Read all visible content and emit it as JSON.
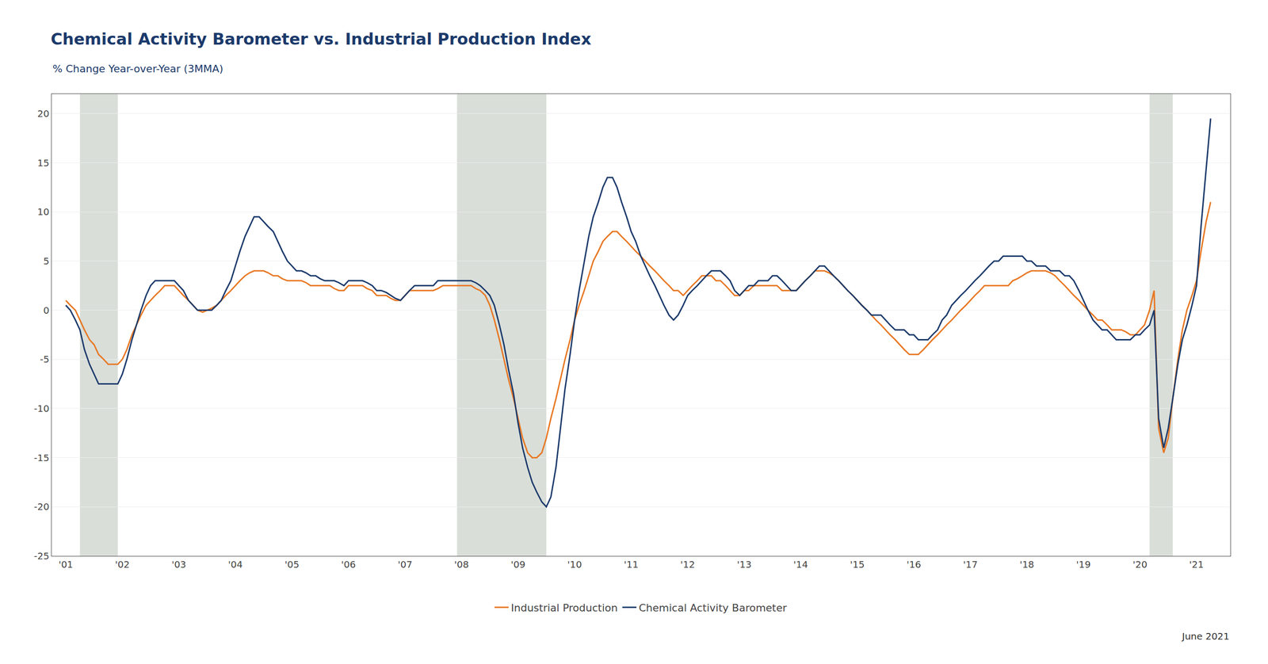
{
  "chart_data": {
    "type": "line",
    "title": "Chemical Activity Barometer vs. Industrial Production Index",
    "subtitle": "% Change Year-over-Year (3MMA)",
    "annotations": [
      "June 2021"
    ],
    "x": [
      2001.0,
      2001.08,
      2001.17,
      2001.25,
      2001.33,
      2001.42,
      2001.5,
      2001.58,
      2001.67,
      2001.75,
      2001.83,
      2001.92,
      2002.0,
      2002.08,
      2002.17,
      2002.25,
      2002.33,
      2002.42,
      2002.5,
      2002.58,
      2002.67,
      2002.75,
      2002.83,
      2002.92,
      2003.0,
      2003.08,
      2003.17,
      2003.25,
      2003.33,
      2003.42,
      2003.5,
      2003.58,
      2003.67,
      2003.75,
      2003.83,
      2003.92,
      2004.0,
      2004.08,
      2004.17,
      2004.25,
      2004.33,
      2004.42,
      2004.5,
      2004.58,
      2004.67,
      2004.75,
      2004.83,
      2004.92,
      2005.0,
      2005.08,
      2005.17,
      2005.25,
      2005.33,
      2005.42,
      2005.5,
      2005.58,
      2005.67,
      2005.75,
      2005.83,
      2005.92,
      2006.0,
      2006.08,
      2006.17,
      2006.25,
      2006.33,
      2006.42,
      2006.5,
      2006.58,
      2006.67,
      2006.75,
      2006.83,
      2006.92,
      2007.0,
      2007.08,
      2007.17,
      2007.25,
      2007.33,
      2007.42,
      2007.5,
      2007.58,
      2007.67,
      2007.75,
      2007.83,
      2007.92,
      2008.0,
      2008.08,
      2008.17,
      2008.25,
      2008.33,
      2008.42,
      2008.5,
      2008.58,
      2008.67,
      2008.75,
      2008.83,
      2008.92,
      2009.0,
      2009.08,
      2009.17,
      2009.25,
      2009.33,
      2009.42,
      2009.5,
      2009.58,
      2009.67,
      2009.75,
      2009.83,
      2009.92,
      2010.0,
      2010.08,
      2010.17,
      2010.25,
      2010.33,
      2010.42,
      2010.5,
      2010.58,
      2010.67,
      2010.75,
      2010.83,
      2010.92,
      2011.0,
      2011.08,
      2011.17,
      2011.25,
      2011.33,
      2011.42,
      2011.5,
      2011.58,
      2011.67,
      2011.75,
      2011.83,
      2011.92,
      2012.0,
      2012.08,
      2012.17,
      2012.25,
      2012.33,
      2012.42,
      2012.5,
      2012.58,
      2012.67,
      2012.75,
      2012.83,
      2012.92,
      2013.0,
      2013.08,
      2013.17,
      2013.25,
      2013.33,
      2013.42,
      2013.5,
      2013.58,
      2013.67,
      2013.75,
      2013.83,
      2013.92,
      2014.0,
      2014.08,
      2014.17,
      2014.25,
      2014.33,
      2014.42,
      2014.5,
      2014.58,
      2014.67,
      2014.75,
      2014.83,
      2014.92,
      2015.0,
      2015.08,
      2015.17,
      2015.25,
      2015.33,
      2015.42,
      2015.5,
      2015.58,
      2015.67,
      2015.75,
      2015.83,
      2015.92,
      2016.0,
      2016.08,
      2016.17,
      2016.25,
      2016.33,
      2016.42,
      2016.5,
      2016.58,
      2016.67,
      2016.75,
      2016.83,
      2016.92,
      2017.0,
      2017.08,
      2017.17,
      2017.25,
      2017.33,
      2017.42,
      2017.5,
      2017.58,
      2017.67,
      2017.75,
      2017.83,
      2017.92,
      2018.0,
      2018.08,
      2018.17,
      2018.25,
      2018.33,
      2018.42,
      2018.5,
      2018.58,
      2018.67,
      2018.75,
      2018.83,
      2018.92,
      2019.0,
      2019.08,
      2019.17,
      2019.25,
      2019.33,
      2019.42,
      2019.5,
      2019.58,
      2019.67,
      2019.75,
      2019.83,
      2019.92,
      2020.0,
      2020.08,
      2020.17,
      2020.25,
      2020.33,
      2020.42,
      2020.5,
      2020.58,
      2020.67,
      2020.75,
      2020.83,
      2020.92,
      2021.0,
      2021.08,
      2021.17,
      2021.25
    ],
    "series": [
      {
        "name": "Industrial Production",
        "color": "#E87722",
        "values": [
          1.0,
          0.5,
          0.0,
          -1.0,
          -2.0,
          -3.0,
          -3.5,
          -4.5,
          -5.0,
          -5.5,
          -5.5,
          -5.5,
          -5.0,
          -4.0,
          -2.5,
          -1.5,
          -0.5,
          0.5,
          1.0,
          1.5,
          2.0,
          2.5,
          2.5,
          2.5,
          2.0,
          1.5,
          1.0,
          0.5,
          0.0,
          -0.2,
          0.0,
          0.2,
          0.5,
          1.0,
          1.5,
          2.0,
          2.5,
          3.0,
          3.5,
          3.8,
          4.0,
          4.0,
          4.0,
          3.8,
          3.5,
          3.5,
          3.2,
          3.0,
          3.0,
          3.0,
          3.0,
          2.8,
          2.5,
          2.5,
          2.5,
          2.5,
          2.5,
          2.2,
          2.0,
          2.0,
          2.5,
          2.5,
          2.5,
          2.5,
          2.2,
          2.0,
          1.5,
          1.5,
          1.5,
          1.2,
          1.0,
          1.0,
          1.5,
          2.0,
          2.0,
          2.0,
          2.0,
          2.0,
          2.0,
          2.2,
          2.5,
          2.5,
          2.5,
          2.5,
          2.5,
          2.5,
          2.5,
          2.2,
          2.0,
          1.5,
          0.5,
          -1.0,
          -3.0,
          -5.0,
          -7.0,
          -9.0,
          -11.0,
          -13.0,
          -14.5,
          -15.0,
          -15.0,
          -14.5,
          -13.0,
          -11.0,
          -9.0,
          -7.0,
          -5.0,
          -3.0,
          -1.0,
          0.5,
          2.0,
          3.5,
          5.0,
          6.0,
          7.0,
          7.5,
          8.0,
          8.0,
          7.5,
          7.0,
          6.5,
          6.0,
          5.5,
          5.0,
          4.5,
          4.0,
          3.5,
          3.0,
          2.5,
          2.0,
          2.0,
          1.5,
          2.0,
          2.5,
          3.0,
          3.5,
          3.5,
          3.5,
          3.0,
          3.0,
          2.5,
          2.0,
          1.5,
          1.5,
          2.0,
          2.0,
          2.5,
          2.5,
          2.5,
          2.5,
          2.5,
          2.5,
          2.0,
          2.0,
          2.0,
          2.0,
          2.5,
          3.0,
          3.5,
          4.0,
          4.0,
          4.0,
          3.8,
          3.5,
          3.0,
          2.5,
          2.0,
          1.5,
          1.0,
          0.5,
          0.0,
          -0.5,
          -1.0,
          -1.5,
          -2.0,
          -2.5,
          -3.0,
          -3.5,
          -4.0,
          -4.5,
          -4.5,
          -4.5,
          -4.0,
          -3.5,
          -3.0,
          -2.5,
          -2.0,
          -1.5,
          -1.0,
          -0.5,
          0.0,
          0.5,
          1.0,
          1.5,
          2.0,
          2.5,
          2.5,
          2.5,
          2.5,
          2.5,
          2.5,
          3.0,
          3.2,
          3.5,
          3.8,
          4.0,
          4.0,
          4.0,
          4.0,
          3.8,
          3.5,
          3.0,
          2.5,
          2.0,
          1.5,
          1.0,
          0.5,
          0.0,
          -0.5,
          -1.0,
          -1.0,
          -1.5,
          -2.0,
          -2.0,
          -2.0,
          -2.2,
          -2.5,
          -2.5,
          -2.0,
          -1.5,
          0.0,
          2.0,
          -12.0,
          -14.5,
          -13.0,
          -9.0,
          -5.0,
          -2.0,
          0.0,
          1.5,
          3.0,
          6.0,
          9.0,
          11.0
        ]
      },
      {
        "name": "Chemical Activity Barometer",
        "color": "#1B3A6B",
        "values": [
          0.5,
          0.0,
          -1.0,
          -2.0,
          -4.0,
          -5.5,
          -6.5,
          -7.5,
          -7.5,
          -7.5,
          -7.5,
          -7.5,
          -6.5,
          -5.0,
          -3.0,
          -1.5,
          0.0,
          1.5,
          2.5,
          3.0,
          3.0,
          3.0,
          3.0,
          3.0,
          2.5,
          2.0,
          1.0,
          0.5,
          0.0,
          0.0,
          0.0,
          0.0,
          0.5,
          1.0,
          2.0,
          3.0,
          4.5,
          6.0,
          7.5,
          8.5,
          9.5,
          9.5,
          9.0,
          8.5,
          8.0,
          7.0,
          6.0,
          5.0,
          4.5,
          4.0,
          4.0,
          3.8,
          3.5,
          3.5,
          3.2,
          3.0,
          3.0,
          3.0,
          2.8,
          2.5,
          3.0,
          3.0,
          3.0,
          3.0,
          2.8,
          2.5,
          2.0,
          2.0,
          1.8,
          1.5,
          1.2,
          1.0,
          1.5,
          2.0,
          2.5,
          2.5,
          2.5,
          2.5,
          2.5,
          3.0,
          3.0,
          3.0,
          3.0,
          3.0,
          3.0,
          3.0,
          3.0,
          2.8,
          2.5,
          2.0,
          1.5,
          0.5,
          -1.5,
          -3.5,
          -6.0,
          -8.5,
          -11.5,
          -14.0,
          -16.0,
          -17.5,
          -18.5,
          -19.5,
          -20.0,
          -19.0,
          -16.0,
          -12.0,
          -8.0,
          -4.5,
          -1.0,
          2.0,
          5.0,
          7.5,
          9.5,
          11.0,
          12.5,
          13.5,
          13.5,
          12.5,
          11.0,
          9.5,
          8.0,
          7.0,
          5.5,
          4.5,
          3.5,
          2.5,
          1.5,
          0.5,
          -0.5,
          -1.0,
          -0.5,
          0.5,
          1.5,
          2.0,
          2.5,
          3.0,
          3.5,
          4.0,
          4.0,
          4.0,
          3.5,
          3.0,
          2.0,
          1.5,
          2.0,
          2.5,
          2.5,
          3.0,
          3.0,
          3.0,
          3.5,
          3.5,
          3.0,
          2.5,
          2.0,
          2.0,
          2.5,
          3.0,
          3.5,
          4.0,
          4.5,
          4.5,
          4.0,
          3.5,
          3.0,
          2.5,
          2.0,
          1.5,
          1.0,
          0.5,
          0.0,
          -0.5,
          -0.5,
          -0.5,
          -1.0,
          -1.5,
          -2.0,
          -2.0,
          -2.0,
          -2.5,
          -2.5,
          -3.0,
          -3.0,
          -3.0,
          -2.5,
          -2.0,
          -1.0,
          -0.5,
          0.5,
          1.0,
          1.5,
          2.0,
          2.5,
          3.0,
          3.5,
          4.0,
          4.5,
          5.0,
          5.0,
          5.5,
          5.5,
          5.5,
          5.5,
          5.5,
          5.0,
          5.0,
          4.5,
          4.5,
          4.5,
          4.0,
          4.0,
          4.0,
          3.5,
          3.5,
          3.0,
          2.0,
          1.0,
          0.0,
          -1.0,
          -1.5,
          -2.0,
          -2.0,
          -2.5,
          -3.0,
          -3.0,
          -3.0,
          -3.0,
          -2.5,
          -2.5,
          -2.0,
          -1.5,
          0.0,
          -11.0,
          -14.0,
          -12.0,
          -9.0,
          -5.5,
          -3.0,
          -1.5,
          0.5,
          2.5,
          8.5,
          14.5,
          19.5
        ]
      }
    ],
    "bands": [
      {
        "x0": 2001.25,
        "x1": 2001.92,
        "color": "#C0C8C0"
      },
      {
        "x0": 2007.92,
        "x1": 2009.5,
        "color": "#C0C8C0"
      },
      {
        "x0": 2020.17,
        "x1": 2020.58,
        "color": "#C0C8C0"
      }
    ],
    "xlim": [
      2000.75,
      2021.6
    ],
    "xticks": [
      {
        "value": 2001,
        "label": "'01"
      },
      {
        "value": 2002,
        "label": "'02"
      },
      {
        "value": 2003,
        "label": "'03"
      },
      {
        "value": 2004,
        "label": "'04"
      },
      {
        "value": 2005,
        "label": "'05"
      },
      {
        "value": 2006,
        "label": "'06"
      },
      {
        "value": 2007,
        "label": "'07"
      },
      {
        "value": 2008,
        "label": "'08"
      },
      {
        "value": 2009,
        "label": "'09"
      },
      {
        "value": 2010,
        "label": "'10"
      },
      {
        "value": 2011,
        "label": "'11"
      },
      {
        "value": 2012,
        "label": "'12"
      },
      {
        "value": 2013,
        "label": "'13"
      },
      {
        "value": 2014,
        "label": "'14"
      },
      {
        "value": 2015,
        "label": "'15"
      },
      {
        "value": 2016,
        "label": "'16"
      },
      {
        "value": 2017,
        "label": "'17"
      },
      {
        "value": 2018,
        "label": "'18"
      },
      {
        "value": 2019,
        "label": "'19"
      },
      {
        "value": 2020,
        "label": "'20"
      },
      {
        "value": 2021,
        "label": "'21"
      }
    ],
    "ylim": [
      -25,
      22
    ],
    "yticks": [
      -25,
      -20,
      -15,
      -10,
      -5,
      0,
      5,
      10,
      15,
      20
    ],
    "grid": "y",
    "legend": "bottom"
  }
}
